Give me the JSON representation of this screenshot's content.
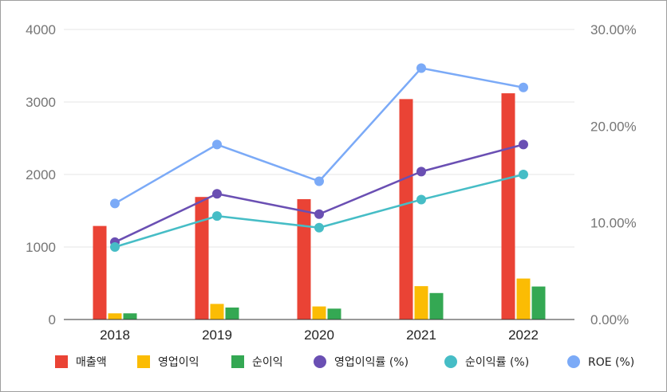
{
  "chart_data": {
    "type": "bar",
    "categories": [
      "2018",
      "2019",
      "2020",
      "2021",
      "2022"
    ],
    "left_axis": {
      "ylim": [
        0,
        4000
      ],
      "ticks": [
        "0",
        "1000",
        "2000",
        "3000",
        "4000"
      ]
    },
    "right_axis": {
      "ylim": [
        0,
        30
      ],
      "ticks": [
        "0.00%",
        "10.00%",
        "20.00%",
        "30.00%"
      ]
    },
    "bar_series": [
      {
        "name": "매출액",
        "color": "#ea4335",
        "values": [
          1290,
          1690,
          1660,
          3040,
          3120
        ]
      },
      {
        "name": "영업이익",
        "color": "#fbbc04",
        "values": [
          85,
          215,
          180,
          460,
          565
        ]
      },
      {
        "name": "순이익",
        "color": "#34a853",
        "values": [
          85,
          165,
          150,
          365,
          455
        ]
      }
    ],
    "line_series": [
      {
        "name": "영업이익률 (%)",
        "color": "#6a4fb3",
        "values": [
          8.0,
          13.0,
          10.9,
          15.3,
          18.1
        ]
      },
      {
        "name": "순이익률 (%)",
        "color": "#46bdc6",
        "values": [
          7.5,
          10.7,
          9.5,
          12.4,
          15.0
        ]
      },
      {
        "name": "ROE (%)",
        "color": "#7baaf7",
        "values": [
          12.0,
          18.1,
          14.3,
          26.0,
          24.0
        ]
      }
    ],
    "grid": true,
    "legend_position": "bottom"
  }
}
